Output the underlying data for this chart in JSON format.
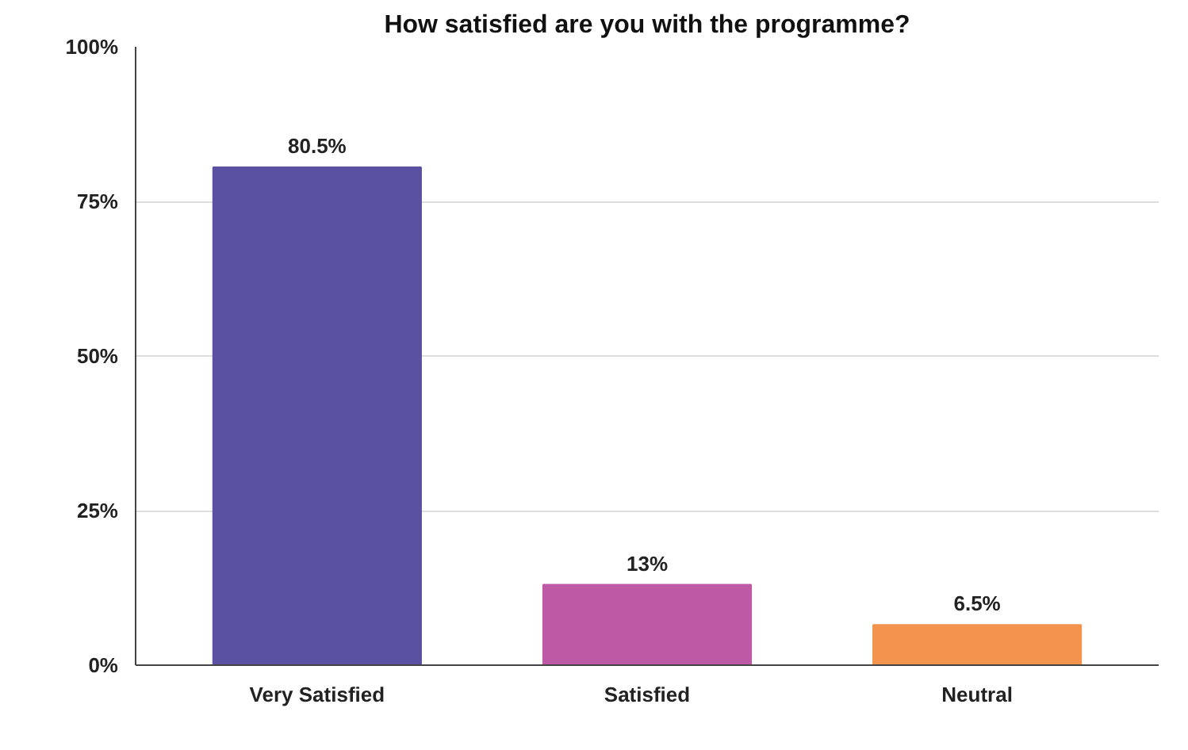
{
  "chart_data": {
    "type": "bar",
    "title": "How satisfied are you with the programme?",
    "categories": [
      "Very Satisfied",
      "Satisfied",
      "Neutral"
    ],
    "values": [
      80.5,
      13,
      6.5
    ],
    "colors": [
      "#5b51a3",
      "#be5aa5",
      "#f3934e"
    ],
    "value_labels": [
      "80.5%",
      "13%",
      "6.5%"
    ],
    "ylim": [
      0,
      100
    ],
    "yticks": [
      {
        "value": 0,
        "label": "0%"
      },
      {
        "value": 25,
        "label": "25%"
      },
      {
        "value": 50,
        "label": "50%"
      },
      {
        "value": 75,
        "label": "75%"
      },
      {
        "value": 100,
        "label": "100%"
      }
    ],
    "grid": "y"
  }
}
